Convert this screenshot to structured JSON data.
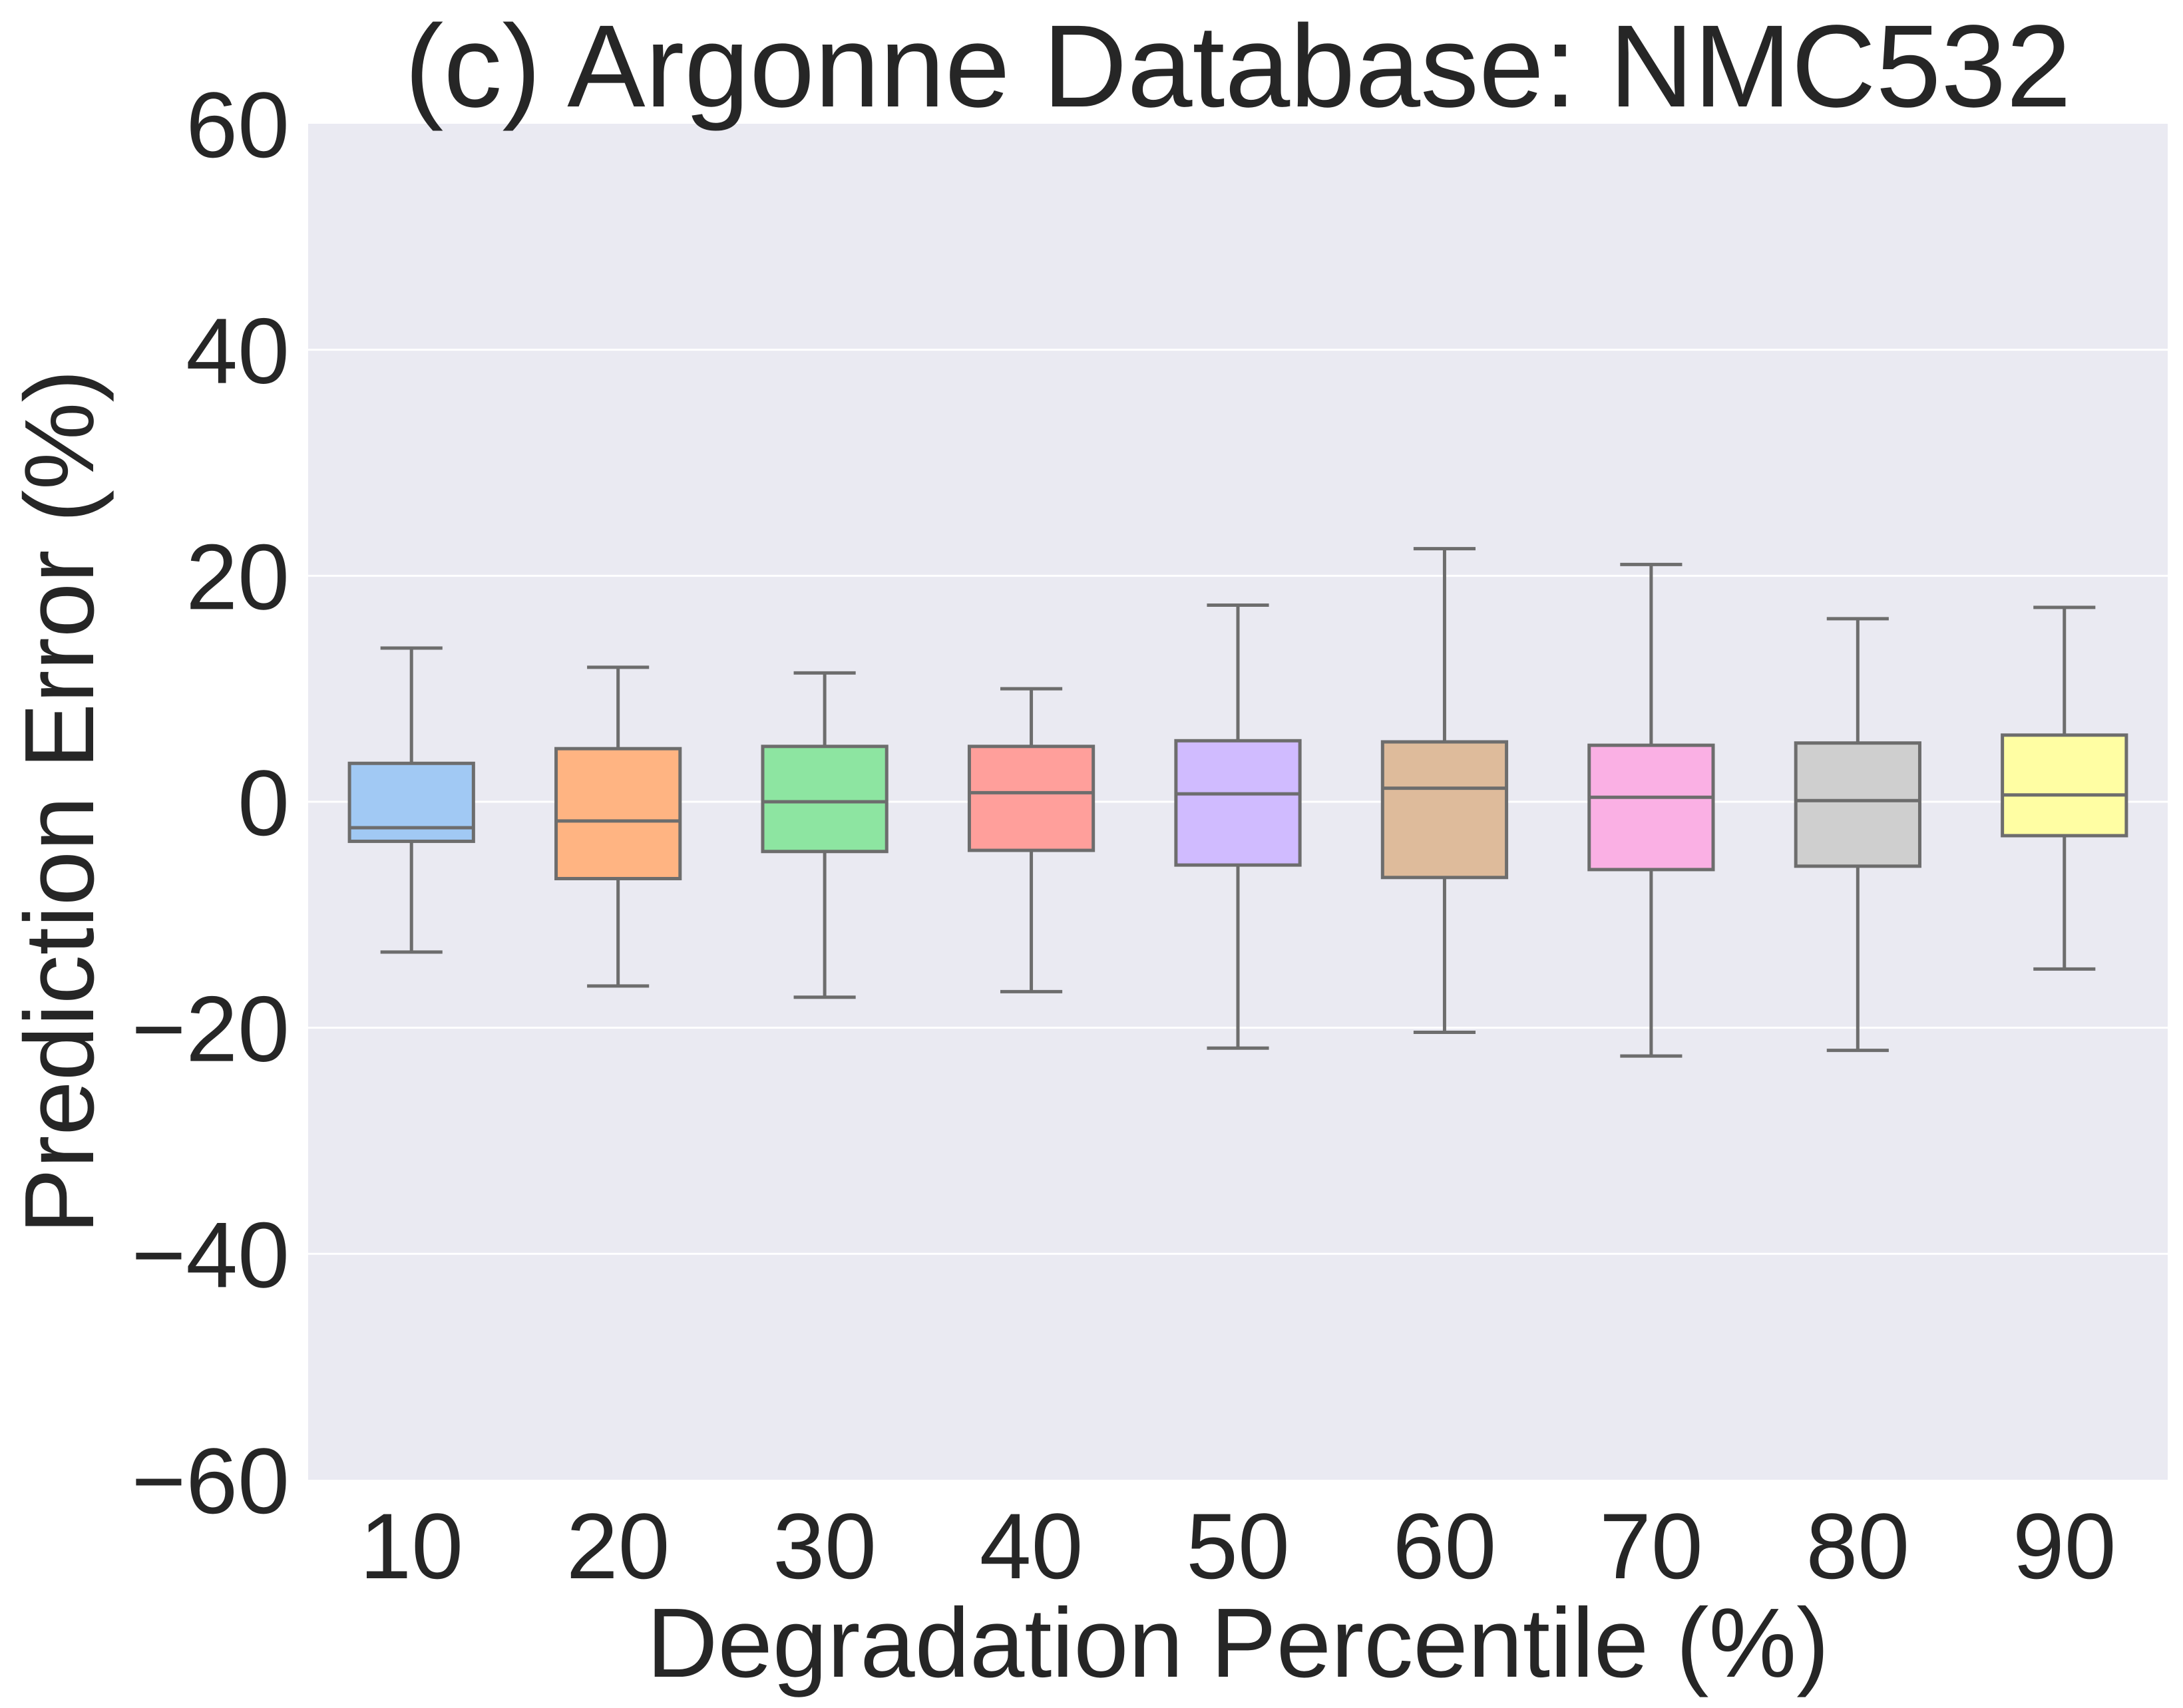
{
  "chart_data": {
    "type": "box",
    "title": "(c) Argonne Database: NMC532",
    "xlabel": "Degradation Percentile (%)",
    "ylabel": "Prediction Error (%)",
    "ylim": [
      -60,
      60
    ],
    "yticks": [
      60,
      40,
      20,
      0,
      -20,
      -40,
      -60
    ],
    "ytick_labels": [
      "60",
      "40",
      "20",
      "0",
      "−20",
      "−40",
      "−60"
    ],
    "grid": true,
    "categories": [
      "10",
      "20",
      "30",
      "40",
      "50",
      "60",
      "70",
      "80",
      "90"
    ],
    "boxes": [
      {
        "category": "10",
        "whisker_low": -13.3,
        "q1": -3.5,
        "median": -2.3,
        "q3": 3.4,
        "whisker_high": 13.6,
        "color": "#a1c9f4"
      },
      {
        "category": "20",
        "whisker_low": -16.3,
        "q1": -6.8,
        "median": -1.7,
        "q3": 4.7,
        "whisker_high": 11.9,
        "color": "#ffb482"
      },
      {
        "category": "30",
        "whisker_low": -17.3,
        "q1": -4.4,
        "median": 0.0,
        "q3": 4.9,
        "whisker_high": 11.4,
        "color": "#8de5a1"
      },
      {
        "category": "40",
        "whisker_low": -16.8,
        "q1": -4.3,
        "median": 0.8,
        "q3": 4.9,
        "whisker_high": 10.0,
        "color": "#ff9f9b"
      },
      {
        "category": "50",
        "whisker_low": -21.8,
        "q1": -5.6,
        "median": 0.7,
        "q3": 5.4,
        "whisker_high": 17.4,
        "color": "#d0bbff"
      },
      {
        "category": "60",
        "whisker_low": -20.4,
        "q1": -6.7,
        "median": 1.2,
        "q3": 5.3,
        "whisker_high": 22.4,
        "color": "#debb9b"
      },
      {
        "category": "70",
        "whisker_low": -22.5,
        "q1": -6.0,
        "median": 0.4,
        "q3": 5.0,
        "whisker_high": 21.0,
        "color": "#fab0e4"
      },
      {
        "category": "80",
        "whisker_low": -22.0,
        "q1": -5.7,
        "median": 0.1,
        "q3": 5.2,
        "whisker_high": 16.2,
        "color": "#cfcfcf"
      },
      {
        "category": "90",
        "whisker_low": -14.8,
        "q1": -3.0,
        "median": 0.6,
        "q3": 5.9,
        "whisker_high": 17.2,
        "color": "#fffea3"
      }
    ],
    "colors": {
      "plot_background": "#eaeaf2",
      "grid": "#ffffff",
      "box_edge": "#6d6d6d",
      "text": "#262626"
    }
  }
}
